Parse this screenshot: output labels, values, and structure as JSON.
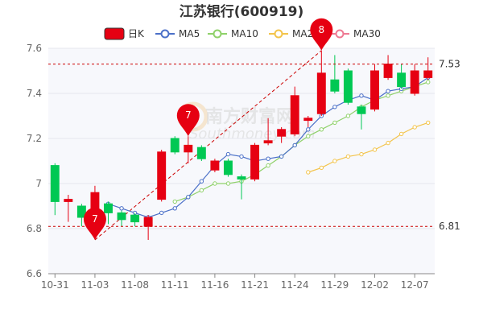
{
  "chart_data": {
    "type": "candlestick",
    "title": "江苏银行(600919)",
    "legend": [
      "日K",
      "MA5",
      "MA10",
      "MA20",
      "MA30"
    ],
    "colors": {
      "up": "#e60012",
      "down": "#00c853",
      "ma5": "#4b70c8",
      "ma10": "#8fd16a",
      "ma20": "#f3c44b",
      "ma30": "#ee7a93",
      "ref": "#cc0000",
      "trend": "#cc0000"
    },
    "ylim": [
      6.6,
      7.6
    ],
    "yticks": [
      6.6,
      6.8,
      7.0,
      7.2,
      7.4,
      7.6
    ],
    "ytick_labels": [
      "6.6",
      "6.8",
      "7",
      "7.2",
      "7.4",
      "7.6"
    ],
    "xtick_labels": [
      {
        "label": "10-31",
        "index": 0
      },
      {
        "label": "11-03",
        "index": 3
      },
      {
        "label": "11-08",
        "index": 6
      },
      {
        "label": "11-11",
        "index": 9
      },
      {
        "label": "11-16",
        "index": 12
      },
      {
        "label": "11-21",
        "index": 15
      },
      {
        "label": "11-24",
        "index": 18
      },
      {
        "label": "11-29",
        "index": 21
      },
      {
        "label": "12-02",
        "index": 24
      },
      {
        "label": "12-07",
        "index": 27
      }
    ],
    "reference_lines": [
      {
        "value": 7.53,
        "label": "7.53"
      },
      {
        "value": 6.81,
        "label": "6.81"
      }
    ],
    "candles": [
      {
        "o": 7.08,
        "c": 6.92,
        "h": 7.09,
        "l": 6.86
      },
      {
        "o": 6.92,
        "c": 6.93,
        "h": 6.95,
        "l": 6.83
      },
      {
        "o": 6.9,
        "c": 6.85,
        "h": 6.91,
        "l": 6.81
      },
      {
        "o": 6.8,
        "c": 6.96,
        "h": 6.99,
        "l": 6.79
      },
      {
        "o": 6.91,
        "c": 6.87,
        "h": 6.92,
        "l": 6.82
      },
      {
        "o": 6.87,
        "c": 6.84,
        "h": 6.88,
        "l": 6.81
      },
      {
        "o": 6.86,
        "c": 6.83,
        "h": 6.87,
        "l": 6.81
      },
      {
        "o": 6.81,
        "c": 6.85,
        "h": 6.86,
        "l": 6.75
      },
      {
        "o": 6.93,
        "c": 7.14,
        "h": 7.15,
        "l": 6.92
      },
      {
        "o": 7.2,
        "c": 7.14,
        "h": 7.21,
        "l": 7.13
      },
      {
        "o": 7.14,
        "c": 7.17,
        "h": 7.21,
        "l": 7.09
      },
      {
        "o": 7.16,
        "c": 7.11,
        "h": 7.17,
        "l": 7.1
      },
      {
        "o": 7.06,
        "c": 7.1,
        "h": 7.11,
        "l": 7.05
      },
      {
        "o": 7.1,
        "c": 7.04,
        "h": 7.11,
        "l": 7.03
      },
      {
        "o": 7.03,
        "c": 7.02,
        "h": 7.04,
        "l": 6.93
      },
      {
        "o": 7.02,
        "c": 7.17,
        "h": 7.18,
        "l": 7.01
      },
      {
        "o": 7.18,
        "c": 7.19,
        "h": 7.29,
        "l": 7.17
      },
      {
        "o": 7.21,
        "c": 7.24,
        "h": 7.25,
        "l": 7.18
      },
      {
        "o": 7.22,
        "c": 7.39,
        "h": 7.43,
        "l": 7.21
      },
      {
        "o": 7.28,
        "c": 7.29,
        "h": 7.3,
        "l": 7.25
      },
      {
        "o": 7.31,
        "c": 7.49,
        "h": 7.59,
        "l": 7.3
      },
      {
        "o": 7.46,
        "c": 7.41,
        "h": 7.57,
        "l": 7.4
      },
      {
        "o": 7.5,
        "c": 7.36,
        "h": 7.51,
        "l": 7.35
      },
      {
        "o": 7.34,
        "c": 7.31,
        "h": 7.35,
        "l": 7.24
      },
      {
        "o": 7.33,
        "c": 7.5,
        "h": 7.53,
        "l": 7.32
      },
      {
        "o": 7.47,
        "c": 7.53,
        "h": 7.57,
        "l": 7.46
      },
      {
        "o": 7.49,
        "c": 7.43,
        "h": 7.53,
        "l": 7.42
      },
      {
        "o": 7.4,
        "c": 7.5,
        "h": 7.53,
        "l": 7.39
      },
      {
        "o": 7.47,
        "c": 7.5,
        "h": 7.56,
        "l": 7.46
      }
    ],
    "ma5": [
      null,
      null,
      null,
      null,
      6.91,
      6.89,
      6.87,
      6.85,
      6.87,
      6.89,
      6.94,
      7.01,
      7.08,
      7.13,
      7.12,
      7.1,
      7.11,
      7.12,
      7.17,
      7.24,
      7.3,
      7.34,
      7.37,
      7.39,
      7.37,
      7.41,
      7.42,
      7.43,
      7.47
    ],
    "ma10": [
      null,
      null,
      null,
      null,
      null,
      null,
      null,
      null,
      null,
      6.92,
      6.94,
      6.97,
      7.0,
      7.0,
      7.01,
      7.04,
      7.08,
      7.12,
      7.17,
      7.21,
      7.24,
      7.27,
      7.3,
      7.34,
      7.37,
      7.39,
      7.41,
      7.43,
      7.45
    ],
    "ma20": [
      null,
      null,
      null,
      null,
      null,
      null,
      null,
      null,
      null,
      null,
      null,
      null,
      null,
      null,
      null,
      null,
      null,
      null,
      null,
      7.05,
      7.07,
      7.1,
      7.12,
      7.13,
      7.15,
      7.18,
      7.22,
      7.25,
      7.27
    ],
    "ma30": [],
    "trendline": {
      "from": {
        "index": 3,
        "value": 6.75
      },
      "to": {
        "index": 20,
        "value": 7.59
      }
    },
    "annotations": [
      {
        "label": "7",
        "index": 3,
        "value": 6.75
      },
      {
        "label": "7",
        "index": 10,
        "value": 7.21
      },
      {
        "label": "8",
        "index": 20,
        "value": 7.59
      }
    ],
    "watermark": {
      "text": "南方财富网",
      "sub": "Southmoney.com"
    }
  }
}
